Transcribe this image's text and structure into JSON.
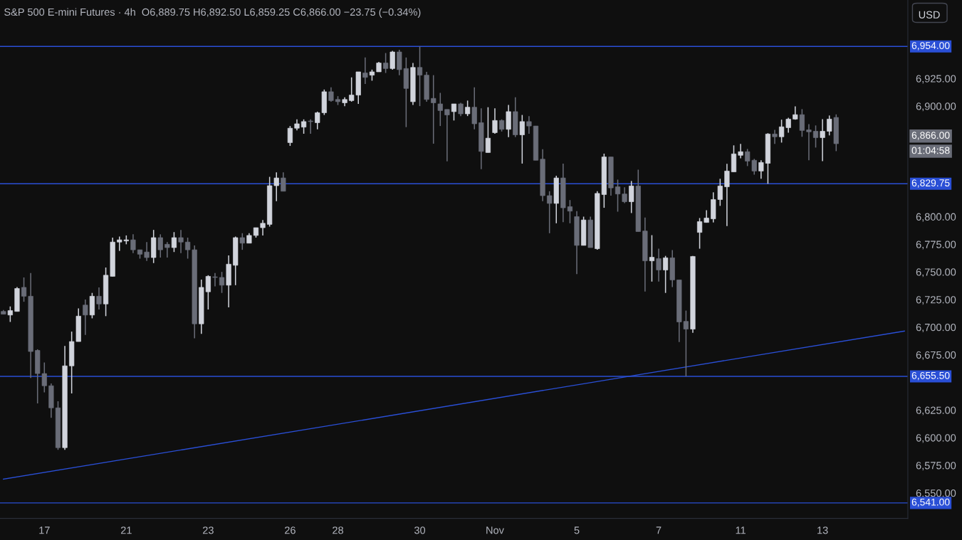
{
  "chart_data": {
    "type": "candlestick",
    "title": "S&P 500 E-mini Futures · 4h",
    "subtitle": "O6,889.75 H6,892.50 L6,859.25 C6,866.00 −23.75 (−0.34%)",
    "categories": [
      null,
      null,
      null,
      null,
      null,
      null,
      "17",
      null,
      null,
      null,
      null,
      null,
      null,
      null,
      null,
      null,
      null,
      null,
      "21",
      null,
      null,
      null,
      null,
      null,
      null,
      null,
      null,
      null,
      null,
      null,
      "23",
      null,
      null,
      null,
      null,
      null,
      null,
      null,
      null,
      null,
      null,
      null,
      "26",
      null,
      null,
      null,
      null,
      null,
      null,
      "28",
      null,
      null,
      null,
      null,
      null,
      null,
      null,
      null,
      null,
      null,
      null,
      "30",
      null,
      null,
      null,
      null,
      null,
      null,
      null,
      null,
      null,
      null,
      "Nov",
      null,
      null,
      null,
      null,
      null,
      null,
      null,
      null,
      null,
      null,
      null,
      "5",
      null,
      null,
      null,
      null,
      null,
      null,
      null,
      null,
      null,
      null,
      null,
      "7",
      null,
      null,
      null,
      null,
      null,
      null,
      null,
      null,
      null,
      null,
      null,
      "11",
      null,
      null,
      null,
      null,
      null,
      null,
      null,
      null,
      null,
      null,
      null,
      "13",
      null,
      null,
      null,
      null,
      null,
      null,
      null,
      null,
      null,
      null,
      null,
      null
    ],
    "ohlc": [
      [
        6714.25,
        6715.5,
        6711.75,
        6711.75
      ],
      [
        6711,
        6718.75,
        6704.75,
        6715
      ],
      [
        6714.25,
        6736.25,
        6714.25,
        6735
      ],
      [
        6736,
        6745,
        6723,
        6728
      ],
      [
        6728,
        6749,
        6654,
        6678
      ],
      [
        6679,
        6680,
        6631,
        6658
      ],
      [
        6658,
        6668,
        6641,
        6647
      ],
      [
        6647,
        6649,
        6618,
        6627
      ],
      [
        6627,
        6633,
        6589,
        6591
      ],
      [
        6591,
        6683,
        6589,
        6665
      ],
      [
        6665,
        6696,
        6640,
        6687
      ],
      [
        6687,
        6717,
        6687,
        6710
      ],
      [
        6720,
        6725,
        6693,
        6711
      ],
      [
        6711,
        6731,
        6708,
        6728
      ],
      [
        6728,
        6736,
        6716,
        6721
      ],
      [
        6721,
        6754,
        6710,
        6747
      ],
      [
        6746,
        6781,
        6746,
        6777
      ],
      [
        6777,
        6782,
        6769,
        6779
      ],
      [
        6778,
        6783,
        6775,
        6779
      ],
      [
        6779,
        6784,
        6767,
        6770
      ],
      [
        6770,
        6770,
        6762,
        6766
      ],
      [
        6768,
        6777,
        6760,
        6763
      ],
      [
        6763,
        6788,
        6758,
        6781
      ],
      [
        6781,
        6784,
        6763,
        6770
      ],
      [
        6775,
        6777,
        6763,
        6772
      ],
      [
        6772,
        6786,
        6768,
        6781
      ],
      [
        6781,
        6788,
        6767,
        6777
      ],
      [
        6777,
        6781,
        6762,
        6770
      ],
      [
        6770,
        6774,
        6690,
        6703
      ],
      [
        6703,
        6743,
        6694,
        6736
      ],
      [
        6732,
        6747,
        6716,
        6746
      ],
      [
        6745,
        6749,
        6737,
        6745
      ],
      [
        6745,
        6750,
        6731,
        6738
      ],
      [
        6738,
        6765,
        6718,
        6757
      ],
      [
        6756,
        6782,
        6738,
        6781
      ],
      [
        6781,
        6785,
        6770,
        6776
      ],
      [
        6776,
        6785,
        6776,
        6783
      ],
      [
        6783,
        6790,
        6781,
        6790
      ],
      [
        6790,
        6797,
        6783,
        6794
      ],
      [
        6793,
        6836,
        6791,
        6828
      ],
      [
        6828,
        6840,
        6814,
        6835
      ],
      [
        6835,
        6840,
        6823,
        6823
      ],
      [
        6867,
        6882,
        6864,
        6880
      ],
      [
        6880,
        6888,
        6878,
        6884
      ],
      [
        6881,
        6888,
        6875,
        6886
      ],
      [
        6886,
        6888,
        6875,
        6886
      ],
      [
        6885,
        6895,
        6879,
        6894
      ],
      [
        6894,
        6915,
        6892,
        6913
      ],
      [
        6913,
        6917,
        6904,
        6905
      ],
      [
        6906,
        6909,
        6901,
        6904
      ],
      [
        6903,
        6908,
        6900,
        6906
      ],
      [
        6905,
        6926,
        6904,
        6910
      ],
      [
        6910,
        6931,
        6902,
        6931
      ],
      [
        6930,
        6944,
        6920,
        6926
      ],
      [
        6928,
        6933,
        6923,
        6931
      ],
      [
        6931,
        6940,
        6931,
        6939
      ],
      [
        6939,
        6948,
        6930,
        6934
      ],
      [
        6934,
        6950,
        6933,
        6949
      ],
      [
        6949,
        6951,
        6928,
        6933
      ],
      [
        6934,
        6944,
        6881,
        6916
      ],
      [
        6904,
        6939,
        6901,
        6935
      ],
      [
        6935,
        6954,
        6900,
        6928
      ],
      [
        6928,
        6931,
        6904,
        6906
      ],
      [
        6907,
        6928,
        6866,
        6903
      ],
      [
        6902,
        6912,
        6882,
        6896
      ],
      [
        6897,
        6897,
        6850,
        6892
      ],
      [
        6895,
        6902,
        6887,
        6902
      ],
      [
        6902,
        6903,
        6891,
        6893
      ],
      [
        6893,
        6905,
        6891,
        6899
      ],
      [
        6899,
        6917,
        6879,
        6884
      ],
      [
        6885,
        6898,
        6843,
        6859
      ],
      [
        6858,
        6899,
        6858,
        6871
      ],
      [
        6876,
        6898,
        6875,
        6887
      ],
      [
        6887,
        6888,
        6877,
        6879
      ],
      [
        6879,
        6901,
        6872,
        6895
      ],
      [
        6895,
        6908,
        6872,
        6874
      ],
      [
        6874,
        6892,
        6848,
        6886
      ],
      [
        6886,
        6891,
        6875,
        6882
      ],
      [
        6882,
        6882,
        6851,
        6851
      ],
      [
        6852,
        6861,
        6814,
        6819
      ],
      [
        6819,
        6823,
        6785,
        6812
      ],
      [
        6812,
        6837,
        6794,
        6835
      ],
      [
        6835,
        6848,
        6795,
        6808
      ],
      [
        6809,
        6815,
        6794,
        6805
      ],
      [
        6800,
        6805,
        6748,
        6774
      ],
      [
        6774,
        6800,
        6774,
        6797
      ],
      [
        6797,
        6800,
        6772,
        6772
      ],
      [
        6771,
        6823,
        6770,
        6821
      ],
      [
        6820,
        6857,
        6808,
        6854
      ],
      [
        6854,
        6854,
        6819,
        6826
      ],
      [
        6827,
        6833.5,
        6804.5,
        6820.5
      ],
      [
        6820.5,
        6826.5,
        6812.25,
        6813.5
      ],
      [
        6813.5,
        6832.25,
        6803.25,
        6827.75
      ],
      [
        6827.75,
        6842.5,
        6786.5,
        6786.5
      ],
      [
        6787,
        6799.25,
        6732.25,
        6760
      ],
      [
        6760,
        6783.25,
        6741.25,
        6763.25
      ],
      [
        6762,
        6771,
        6741.25,
        6751.75
      ],
      [
        6751.75,
        6764.5,
        6731,
        6762.75
      ],
      [
        6762.75,
        6769.75,
        6736.25,
        6742.75
      ],
      [
        6742.75,
        6742.75,
        6686.5,
        6704.75
      ],
      [
        6705.25,
        6715,
        6655.5,
        6698.25
      ],
      [
        6698.25,
        6764.5,
        6695,
        6764
      ],
      [
        6785.75,
        6798.75,
        6771,
        6795.5
      ],
      [
        6794.75,
        6805.75,
        6794.75,
        6798.75
      ],
      [
        6798,
        6822,
        6794.75,
        6815.5
      ],
      [
        6815.5,
        6834.25,
        6809.75,
        6827.75
      ],
      [
        6827,
        6847.75,
        6791.5,
        6841.25
      ],
      [
        6840.5,
        6864.5,
        6840.5,
        6856.75
      ],
      [
        6855.5,
        6865.75,
        6852.75,
        6858.75
      ],
      [
        6858.75,
        6861.25,
        6845.75,
        6850.25
      ],
      [
        6851,
        6852.25,
        6838,
        6841.25
      ],
      [
        6841.25,
        6851,
        6834.25,
        6849
      ],
      [
        6848.25,
        6875.5,
        6829.75,
        6874.75
      ],
      [
        6874.75,
        6878.5,
        6865.75,
        6872.25
      ],
      [
        6872.25,
        6887.75,
        6867,
        6881.25
      ],
      [
        6880.5,
        6889.5,
        6876,
        6888.25
      ],
      [
        6888.25,
        6899.75,
        6887.75,
        6892.25
      ],
      [
        6892.25,
        6897.25,
        6872.25,
        6878
      ],
      [
        6878.5,
        6883.75,
        6851,
        6876.75
      ],
      [
        6877.25,
        6882.5,
        6862.5,
        6871.5
      ],
      [
        6871.5,
        6888.25,
        6850.25,
        6877.25
      ],
      [
        6877.25,
        6891.5,
        6873.5,
        6888.25
      ],
      [
        6889.75,
        6892.5,
        6859.25,
        6866
      ],
      null,
      null,
      null,
      null,
      null,
      null,
      null,
      null,
      null,
      null
    ],
    "series": [
      {
        "type": "line",
        "color": "#2a4fd6",
        "values": [
          6562.5,
          null,
          null,
          null,
          null,
          null,
          null,
          null,
          null,
          null,
          null,
          null,
          null,
          null,
          null,
          null,
          null,
          null,
          null,
          null,
          null,
          null,
          null,
          null,
          null,
          null,
          null,
          null,
          null,
          null,
          null,
          null,
          null,
          null,
          null,
          null,
          null,
          null,
          null,
          null,
          null,
          null,
          null,
          null,
          null,
          null,
          null,
          null,
          null,
          null,
          null,
          null,
          null,
          null,
          null,
          null,
          null,
          null,
          null,
          null,
          null,
          null,
          null,
          null,
          null,
          null,
          null,
          null,
          null,
          null,
          null,
          null,
          null,
          null,
          null,
          null,
          null,
          null,
          null,
          null,
          null,
          null,
          null,
          null,
          null,
          null,
          null,
          null,
          null,
          null,
          null,
          null,
          null,
          null,
          null,
          null,
          null,
          null,
          null,
          null,
          null,
          null,
          null,
          null,
          null,
          null,
          null,
          null,
          null,
          null,
          null,
          null,
          null,
          null,
          null,
          null,
          null,
          null,
          null,
          null,
          null,
          null,
          null,
          null,
          null,
          null,
          null,
          null,
          null,
          null,
          null,
          null,
          6696.5
        ]
      }
    ],
    "ylim": [
      6527,
      6996
    ],
    "yticks": [
      {
        "value": 6550,
        "label": "6,550.00"
      },
      {
        "value": 6575,
        "label": "6,575.00"
      },
      {
        "value": 6600,
        "label": "6,600.00"
      },
      {
        "value": 6625,
        "label": "6,625.00"
      },
      {
        "value": 6675,
        "label": "6,675.00"
      },
      {
        "value": 6700,
        "label": "6,700.00"
      },
      {
        "value": 6725,
        "label": "6,725.00"
      },
      {
        "value": 6750,
        "label": "6,750.00"
      },
      {
        "value": 6775,
        "label": "6,775.00"
      },
      {
        "value": 6800,
        "label": "6,800.00"
      },
      {
        "value": 6900,
        "label": "6,900.00"
      },
      {
        "value": 6925,
        "label": "6,925.00"
      }
    ],
    "ref_lines": [
      {
        "axis": "y",
        "value": 6954,
        "label": "6,954.00",
        "color": "#2a4fd6"
      },
      {
        "axis": "y",
        "value": 6829.75,
        "label": "6,829.75",
        "color": "#2a4fd6"
      },
      {
        "axis": "y",
        "value": 6655.5,
        "label": "6,655.50",
        "color": "#2a4fd6"
      },
      {
        "axis": "y",
        "value": 6541,
        "label": "6,541.00",
        "color": "#2a4fd6"
      }
    ],
    "annotations": [
      "6,866.00",
      "01:04:58",
      "USD"
    ],
    "grid": false,
    "legend": false
  }
}
